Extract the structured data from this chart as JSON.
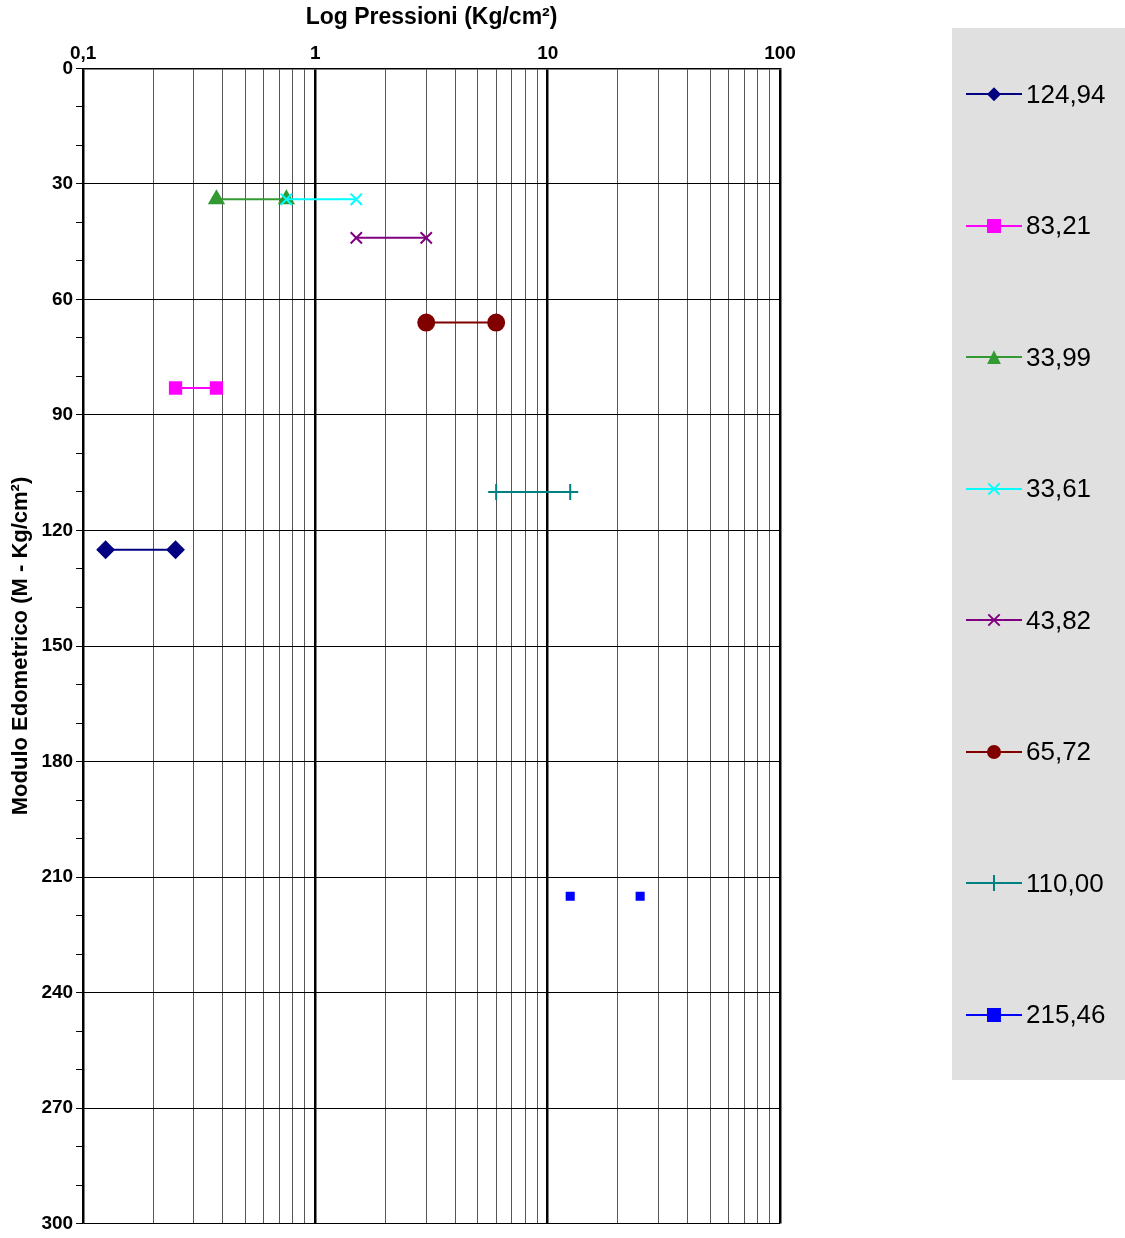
{
  "chart_data": {
    "type": "line",
    "xlabel": "Log Pressioni (Kg/cm²)",
    "ylabel": "Modulo Edometrico (M - Kg/cm²)",
    "log": "x",
    "xlim": [
      0.1,
      100
    ],
    "ylim": [
      300,
      0
    ],
    "xticks": [
      {
        "value": 0.1,
        "label": "0,1"
      },
      {
        "value": 0.2,
        "label": null
      },
      {
        "value": 0.3,
        "label": null
      },
      {
        "value": 0.4,
        "label": null
      },
      {
        "value": 0.5,
        "label": null
      },
      {
        "value": 0.6,
        "label": null
      },
      {
        "value": 0.7,
        "label": null
      },
      {
        "value": 0.8,
        "label": null
      },
      {
        "value": 0.9,
        "label": null
      },
      1,
      {
        "value": 2,
        "label": null
      },
      {
        "value": 3,
        "label": null
      },
      {
        "value": 4,
        "label": null
      },
      {
        "value": 5,
        "label": null
      },
      {
        "value": 6,
        "label": null
      },
      {
        "value": 7,
        "label": null
      },
      {
        "value": 8,
        "label": null
      },
      {
        "value": 9,
        "label": null
      },
      10,
      {
        "value": 20,
        "label": null
      },
      {
        "value": 30,
        "label": null
      },
      {
        "value": 40,
        "label": null
      },
      {
        "value": 50,
        "label": null
      },
      {
        "value": 60,
        "label": null
      },
      {
        "value": 70,
        "label": null
      },
      {
        "value": 80,
        "label": null
      },
      {
        "value": 90,
        "label": null
      },
      100
    ],
    "yticks": [
      0,
      {
        "value": 10,
        "label": null
      },
      {
        "value": 20,
        "label": null
      },
      30,
      {
        "value": 40,
        "label": null
      },
      {
        "value": 50,
        "label": null
      },
      60,
      {
        "value": 70,
        "label": null
      },
      {
        "value": 80,
        "label": null
      },
      90,
      {
        "value": 100,
        "label": null
      },
      {
        "value": 110,
        "label": null
      },
      120,
      {
        "value": 130,
        "label": null
      },
      {
        "value": 140,
        "label": null
      },
      150,
      {
        "value": 160,
        "label": null
      },
      {
        "value": 170,
        "label": null
      },
      180,
      {
        "value": 190,
        "label": null
      },
      {
        "value": 200,
        "label": null
      },
      210,
      {
        "value": 220,
        "label": null
      },
      {
        "value": 230,
        "label": null
      },
      240,
      {
        "value": 250,
        "label": null
      },
      {
        "value": 260,
        "label": null
      },
      270,
      {
        "value": 280,
        "label": null
      },
      {
        "value": 290,
        "label": null
      },
      300
    ],
    "grid": true,
    "legend": "right",
    "line_style": "solid",
    "series": [
      {
        "name": "124,94",
        "color": "#000080",
        "marker": "diamond",
        "x": [
          0.125,
          0.25
        ],
        "values": [
          125,
          125
        ]
      },
      {
        "name": "83,21",
        "color": "#ff00ff",
        "marker": "square",
        "x": [
          0.25,
          0.375
        ],
        "values": [
          83,
          83
        ]
      },
      {
        "name": "33,99",
        "color": "#339933",
        "marker": "triangle",
        "x": [
          0.375,
          0.75
        ],
        "values": [
          34,
          34
        ]
      },
      {
        "name": "33,61",
        "color": "#00ffff",
        "marker": "cross",
        "x": [
          0.75,
          1.5
        ],
        "values": [
          34,
          34
        ]
      },
      {
        "name": "43,82",
        "color": "#800080",
        "marker": "cross",
        "x": [
          1.5,
          3
        ],
        "values": [
          44,
          44
        ]
      },
      {
        "name": "65,72",
        "color": "#800000",
        "marker": "circle",
        "x": [
          3,
          6
        ],
        "values": [
          66,
          66
        ]
      },
      {
        "name": "110,00",
        "color": "#008080",
        "marker": "plus",
        "x": [
          6,
          12.5
        ],
        "values": [
          110,
          110
        ]
      },
      {
        "name": "215,46",
        "color": "#0000ff",
        "marker": "square",
        "type": "scatter",
        "x": [
          12.5,
          25
        ],
        "values": [
          215,
          215
        ]
      }
    ]
  }
}
